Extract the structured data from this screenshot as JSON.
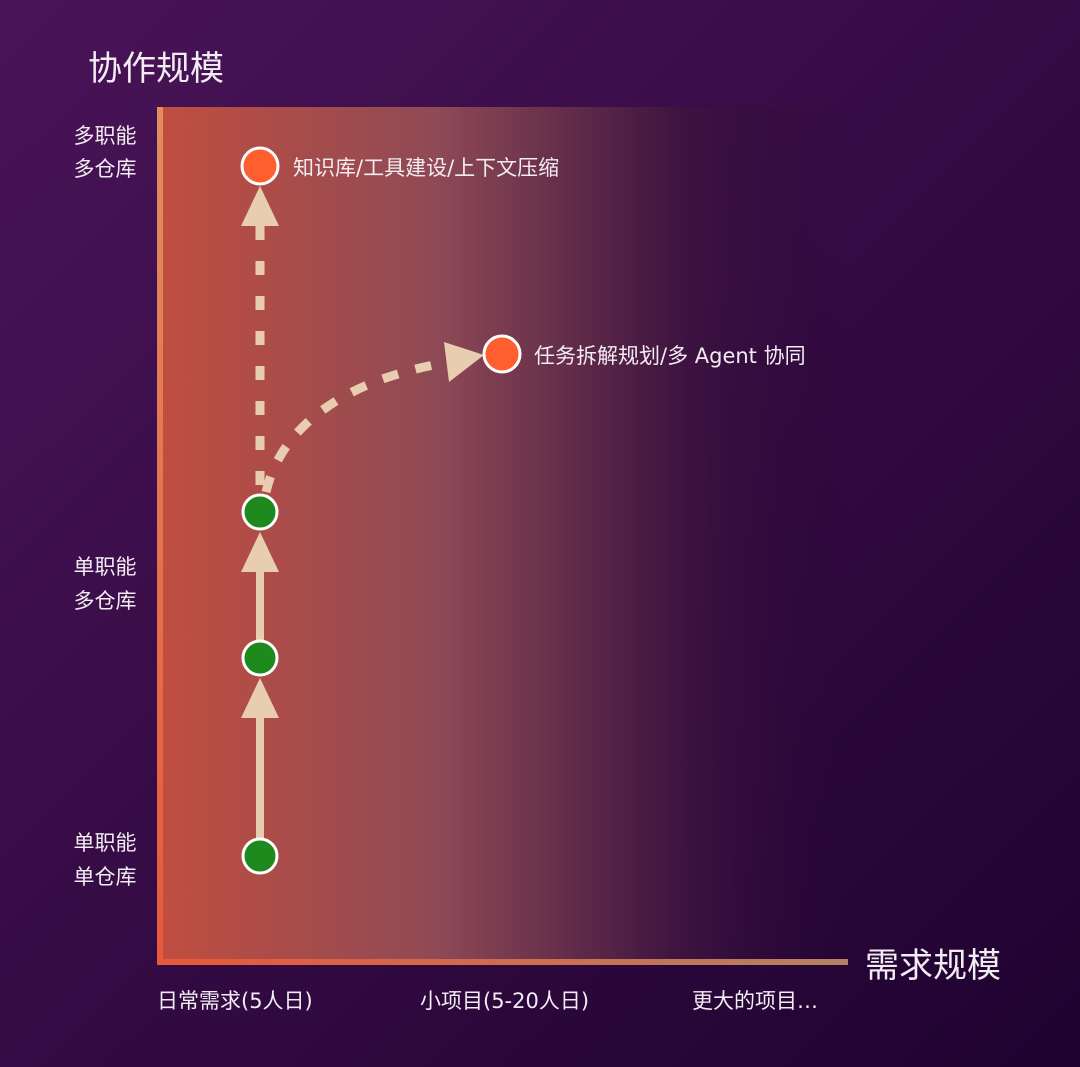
{
  "y_axis": {
    "title": "协作规模",
    "levels": [
      {
        "line1": "多职能",
        "line2": "多仓库"
      },
      {
        "line1": "单职能",
        "line2": "多仓库"
      },
      {
        "line1": "单职能",
        "line2": "单仓库"
      }
    ]
  },
  "x_axis": {
    "title": "需求规模",
    "levels": [
      "日常需求(5人日)",
      "小项目(5-20人日)",
      "更大的项目…"
    ]
  },
  "nodes": {
    "top_label": "知识库/工具建设/上下文压缩",
    "branch_label": "任务拆解规划/多 Agent 协同"
  },
  "colors": {
    "background": "#2a0a36",
    "node_orange": "#ff5e2e",
    "node_green": "#1e8a1e",
    "arrow": "#e8cdb0",
    "axis": "#e57a4a"
  }
}
